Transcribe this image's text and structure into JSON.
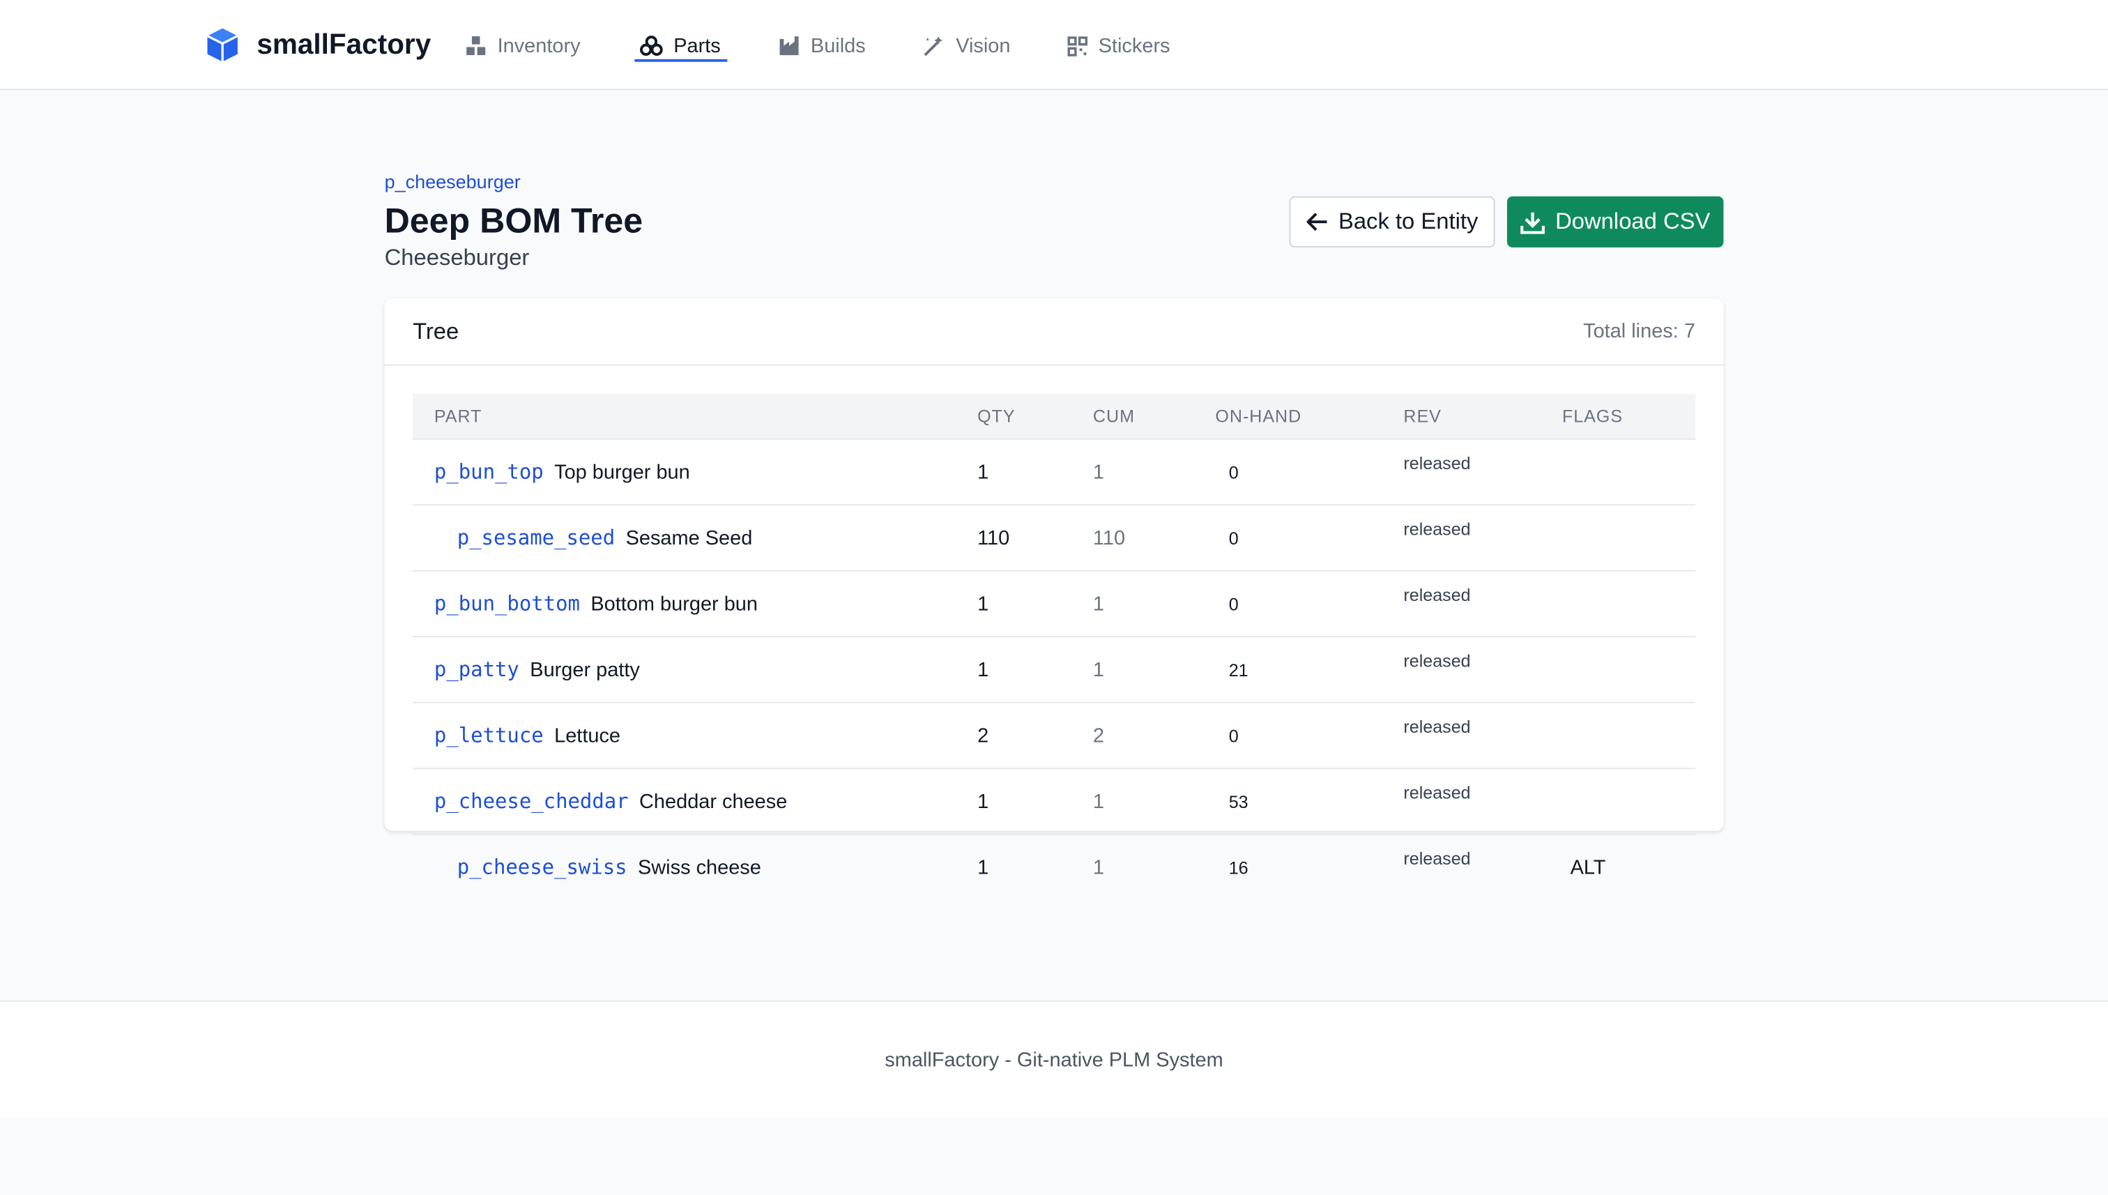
{
  "nav": {
    "brand": "smallFactory",
    "items": [
      "Inventory",
      "Parts",
      "Builds",
      "Vision",
      "Stickers"
    ]
  },
  "header": {
    "breadcrumb": "p_cheeseburger",
    "title": "Deep BOM Tree",
    "subtitle": "Cheeseburger",
    "back_button": "Back to Entity",
    "download_button": "Download CSV"
  },
  "card": {
    "title": "Tree",
    "total": "Total lines: 7"
  },
  "table": {
    "columns": [
      "PART",
      "QTY",
      "CUM",
      "ON-HAND",
      "REV",
      "FLAGS"
    ],
    "rows": [
      {
        "id": "p_bun_top",
        "name": "Top burger bun",
        "level": 0,
        "qty": "1",
        "cum": "1",
        "on_hand": "0",
        "rev": "released"
      },
      {
        "id": "p_sesame_seed",
        "name": "Sesame Seed",
        "level": 1,
        "qty": "110",
        "cum": "110",
        "on_hand": "0",
        "rev": "released"
      },
      {
        "id": "p_bun_bottom",
        "name": "Bottom burger bun",
        "level": 0,
        "qty": "1",
        "cum": "1",
        "on_hand": "0",
        "rev": "released"
      },
      {
        "id": "p_patty",
        "name": "Burger patty",
        "level": 0,
        "qty": "1",
        "cum": "1",
        "on_hand": "21",
        "rev": "released"
      },
      {
        "id": "p_lettuce",
        "name": "Lettuce",
        "level": 0,
        "qty": "2",
        "cum": "2",
        "on_hand": "0",
        "rev": "released"
      },
      {
        "id": "p_cheese_cheddar",
        "name": "Cheddar cheese",
        "level": 0,
        "qty": "1",
        "cum": "1",
        "on_hand": "53",
        "rev": "released"
      },
      {
        "id": "p_cheese_swiss",
        "name": "Swiss cheese",
        "level": 1,
        "qty": "1",
        "cum": "1",
        "on_hand": "16",
        "rev": "released",
        "flags": "ALT"
      }
    ]
  },
  "footer": {
    "text": "smallFactory - Git-native PLM System"
  }
}
